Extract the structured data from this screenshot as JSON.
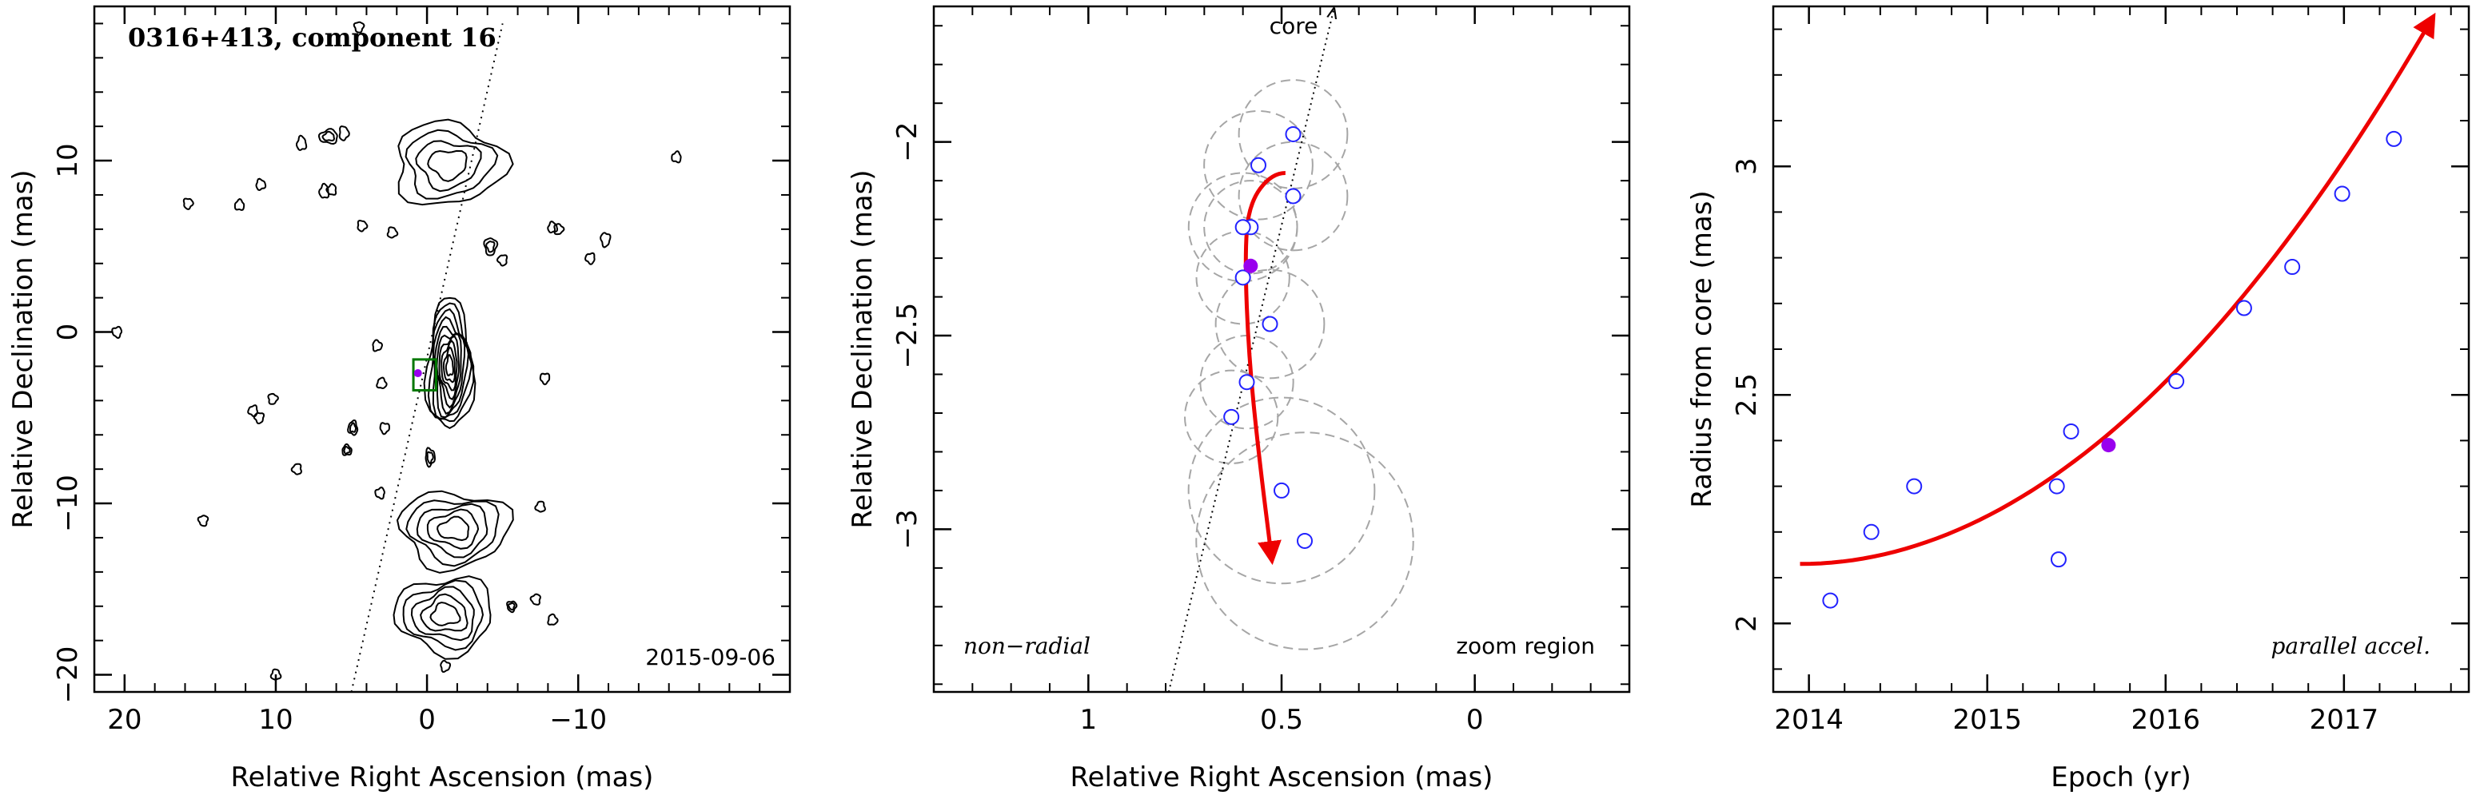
{
  "chart_data": [
    {
      "type": "contour",
      "title": "0316+413, component 16",
      "xlabel": "Relative Right Ascension (mas)",
      "ylabel": "Relative Declination (mas)",
      "xlim": [
        22,
        -24
      ],
      "ylim": [
        -21,
        19
      ],
      "xticks": [
        20,
        10,
        0,
        -10
      ],
      "yticks": [
        -20,
        -10,
        0,
        10
      ],
      "date_label": "2015-09-06",
      "core_line": [
        [
          5,
          -21
        ],
        [
          -5,
          18
        ]
      ],
      "zoom_box": {
        "x": [
          -0.6,
          0.9
        ],
        "y": [
          -3.4,
          -1.6
        ]
      },
      "marker_point": [
        0.6,
        -2.4
      ],
      "contour_blobs": [
        {
          "x": -1.5,
          "y": -2.0,
          "rx": 1.5,
          "ry": 3.8,
          "levels": 10
        },
        {
          "x": -1.4,
          "y": 9.8,
          "rx": 3.6,
          "ry": 2.4,
          "levels": 4
        },
        {
          "x": -1.8,
          "y": -11.5,
          "rx": 3.6,
          "ry": 2.2,
          "levels": 5
        },
        {
          "x": -1.2,
          "y": -16.5,
          "rx": 3.2,
          "ry": 2.2,
          "levels": 5
        },
        {
          "x": 6.5,
          "y": 11.4,
          "rx": 0.6,
          "ry": 0.4,
          "levels": 2
        },
        {
          "x": 8.3,
          "y": 11.0,
          "rx": 0.3,
          "ry": 0.4,
          "levels": 1
        },
        {
          "x": 5.5,
          "y": 11.6,
          "rx": 0.3,
          "ry": 0.4,
          "levels": 1
        },
        {
          "x": -4.2,
          "y": 5.0,
          "rx": 0.4,
          "ry": 0.5,
          "levels": 2
        },
        {
          "x": -5.0,
          "y": 4.2,
          "rx": 0.3,
          "ry": 0.3,
          "levels": 1
        },
        {
          "x": 4.9,
          "y": -5.6,
          "rx": 0.3,
          "ry": 0.4,
          "levels": 2
        },
        {
          "x": 5.3,
          "y": -6.9,
          "rx": 0.3,
          "ry": 0.3,
          "levels": 2
        },
        {
          "x": -0.2,
          "y": -7.3,
          "rx": 0.3,
          "ry": 0.5,
          "levels": 2
        },
        {
          "x": -5.6,
          "y": -16.0,
          "rx": 0.3,
          "ry": 0.3,
          "levels": 2
        },
        {
          "x": -7.2,
          "y": -15.6,
          "rx": 0.3,
          "ry": 0.3,
          "levels": 1
        },
        {
          "x": -7.5,
          "y": -10.2,
          "rx": 0.3,
          "ry": 0.3,
          "levels": 1
        },
        {
          "x": -8.3,
          "y": -16.8,
          "rx": 0.3,
          "ry": 0.3,
          "levels": 1
        },
        {
          "x": -1.2,
          "y": -19.5,
          "rx": 0.3,
          "ry": 0.3,
          "levels": 1
        },
        {
          "x": -7.8,
          "y": -2.7,
          "rx": 0.3,
          "ry": 0.3,
          "levels": 1
        },
        {
          "x": 3.1,
          "y": -9.4,
          "rx": 0.3,
          "ry": 0.3,
          "levels": 1
        },
        {
          "x": 6.8,
          "y": 8.2,
          "rx": 0.3,
          "ry": 0.4,
          "levels": 1
        },
        {
          "x": 2.3,
          "y": 5.8,
          "rx": 0.3,
          "ry": 0.3,
          "levels": 1
        },
        {
          "x": 10.2,
          "y": -3.9,
          "rx": 0.3,
          "ry": 0.3,
          "levels": 1
        },
        {
          "x": 11.1,
          "y": -5.0,
          "rx": 0.3,
          "ry": 0.3,
          "levels": 1
        },
        {
          "x": 11.5,
          "y": -4.6,
          "rx": 0.3,
          "ry": 0.3,
          "levels": 1
        },
        {
          "x": 12.4,
          "y": 7.4,
          "rx": 0.3,
          "ry": 0.3,
          "levels": 1
        },
        {
          "x": 11.0,
          "y": 8.6,
          "rx": 0.3,
          "ry": 0.3,
          "levels": 1
        },
        {
          "x": 15.8,
          "y": 7.5,
          "rx": 0.3,
          "ry": 0.3,
          "levels": 1
        },
        {
          "x": 14.8,
          "y": -11.0,
          "rx": 0.3,
          "ry": 0.3,
          "levels": 1
        },
        {
          "x": 8.6,
          "y": -8.0,
          "rx": 0.3,
          "ry": 0.3,
          "levels": 1
        },
        {
          "x": 3.0,
          "y": -3.0,
          "rx": 0.3,
          "ry": 0.3,
          "levels": 1
        },
        {
          "x": 3.3,
          "y": -0.8,
          "rx": 0.3,
          "ry": 0.3,
          "levels": 1
        },
        {
          "x": 2.8,
          "y": -5.6,
          "rx": 0.3,
          "ry": 0.3,
          "levels": 1
        },
        {
          "x": 20.5,
          "y": 0.0,
          "rx": 0.3,
          "ry": 0.3,
          "levels": 1
        },
        {
          "x": 6.3,
          "y": 8.3,
          "rx": 0.3,
          "ry": 0.3,
          "levels": 1
        },
        {
          "x": 10.0,
          "y": -20.0,
          "rx": 0.3,
          "ry": 0.3,
          "levels": 1
        },
        {
          "x": -8.7,
          "y": 6.0,
          "rx": 0.3,
          "ry": 0.3,
          "levels": 1
        },
        {
          "x": -11.8,
          "y": 5.4,
          "rx": 0.3,
          "ry": 0.4,
          "levels": 1
        },
        {
          "x": -10.8,
          "y": 4.3,
          "rx": 0.3,
          "ry": 0.3,
          "levels": 1
        },
        {
          "x": -16.5,
          "y": 10.2,
          "rx": 0.3,
          "ry": 0.3,
          "levels": 1
        },
        {
          "x": -8.3,
          "y": 6.1,
          "rx": 0.3,
          "ry": 0.3,
          "levels": 1
        },
        {
          "x": 4.3,
          "y": 6.2,
          "rx": 0.3,
          "ry": 0.3,
          "levels": 1
        },
        {
          "x": 4.5,
          "y": 17.8,
          "rx": 0.3,
          "ry": 0.3,
          "levels": 1
        }
      ]
    },
    {
      "type": "scatter",
      "xlabel": "Relative Right Ascension (mas)",
      "ylabel": "Relative Declination (mas)",
      "xlim": [
        1.4,
        -0.4
      ],
      "ylim": [
        -3.42,
        -1.65
      ],
      "xticks": [
        1,
        0.5,
        0
      ],
      "yticks": [
        -3,
        -2.5,
        -2
      ],
      "annotations": {
        "left": "non−radial",
        "right": "zoom region",
        "core": "core"
      },
      "core_line": [
        [
          0.792,
          -3.42
        ],
        [
          0.365,
          -1.65
        ]
      ],
      "points": [
        {
          "x": 0.47,
          "y": -1.98,
          "err": 0.14
        },
        {
          "x": 0.56,
          "y": -2.06,
          "err": 0.14
        },
        {
          "x": 0.47,
          "y": -2.14,
          "err": 0.14
        },
        {
          "x": 0.58,
          "y": -2.22,
          "err": 0.12
        },
        {
          "x": 0.6,
          "y": -2.22,
          "err": 0.14
        },
        {
          "x": 0.6,
          "y": -2.35,
          "err": 0.12
        },
        {
          "x": 0.53,
          "y": -2.47,
          "err": 0.14
        },
        {
          "x": 0.59,
          "y": -2.62,
          "err": 0.12
        },
        {
          "x": 0.63,
          "y": -2.71,
          "err": 0.12
        },
        {
          "x": 0.5,
          "y": -2.9,
          "err": 0.24
        },
        {
          "x": 0.44,
          "y": -3.03,
          "err": 0.28
        }
      ],
      "highlight_point": {
        "x": 0.58,
        "y": -2.32
      },
      "trajectory": [
        [
          0.49,
          -2.08
        ],
        [
          0.525,
          -2.08
        ],
        [
          0.585,
          -2.16
        ],
        [
          0.595,
          -2.3
        ],
        [
          0.585,
          -2.55
        ],
        [
          0.56,
          -2.8
        ],
        [
          0.525,
          -3.08
        ]
      ]
    },
    {
      "type": "scatter",
      "xlabel": "Epoch (yr)",
      "ylabel": "Radius from core (mas)",
      "xlim": [
        2013.8,
        2017.7
      ],
      "ylim": [
        1.85,
        3.35
      ],
      "xticks": [
        2014,
        2015,
        2016,
        2017
      ],
      "yticks": [
        2,
        2.5,
        3
      ],
      "annotation": "parallel accel.",
      "points": [
        {
          "x": 2014.12,
          "y": 2.05
        },
        {
          "x": 2014.35,
          "y": 2.2
        },
        {
          "x": 2014.59,
          "y": 2.3
        },
        {
          "x": 2015.39,
          "y": 2.3
        },
        {
          "x": 2015.4,
          "y": 2.14
        },
        {
          "x": 2015.47,
          "y": 2.42
        },
        {
          "x": 2016.06,
          "y": 2.53
        },
        {
          "x": 2016.44,
          "y": 2.69
        },
        {
          "x": 2016.71,
          "y": 2.78
        },
        {
          "x": 2016.99,
          "y": 2.94
        },
        {
          "x": 2017.28,
          "y": 3.06
        }
      ],
      "highlight_point": {
        "x": 2015.68,
        "y": 2.39
      },
      "fit_curve": {
        "x0": 2013.95,
        "y0": 2.13,
        "a": 0.095,
        "b": 0.0,
        "x_end": 2017.5
      }
    }
  ],
  "colors": {
    "axis": "#000000",
    "contour": "#000000",
    "point_outline": "#2222ff",
    "highlight": "#9900ee",
    "trajectory": "#ee0000",
    "error_circle": "#a6a6a6",
    "zoom_box": "#007700"
  }
}
